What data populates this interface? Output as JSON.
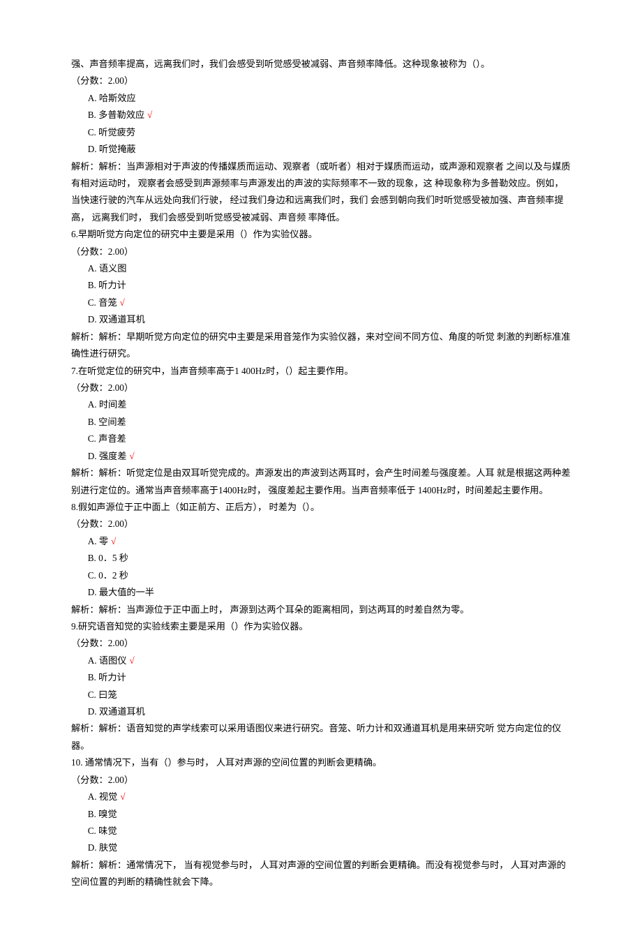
{
  "font": {
    "family": "SimSun",
    "size_pt": 10,
    "line_height": 1.85
  },
  "colors": {
    "text": "#000000",
    "correct_mark": "#ff0000",
    "background": "#ffffff"
  },
  "correct_mark_glyph": "√",
  "continuation_text": "强、声音频率提高，远离我们时，我们会感受到听觉感受被减弱、声音频率降低。这种现象被称为（）。",
  "continuation_score": "（分数：2.00）",
  "continuation_options": [
    {
      "label": "A.  哈斯效应",
      "correct": false
    },
    {
      "label": "B.  多普勒效应",
      "correct": true
    },
    {
      "label": "C.  听觉疲劳",
      "correct": false
    },
    {
      "label": "D.  听觉掩蔽",
      "correct": false
    }
  ],
  "continuation_explain": "解析：解析：当声源相对于声波的传播媒质而运动、观察者（或听者）相对于媒质而运动，或声源和观察者 之间以及与媒质有相对运动时， 观察者会感受到声源频率与声源发出的声波的实际频率不一致的现象，这 种现象称为多普勒效应。例如，当快速行驶的汽车从远处向我们行驶， 经过我们身边和远离我们时，我们 会感到朝向我们时听觉感受被加强、声音频率提高， 远离我们时， 我们会感受到听觉感受被减弱、声音频 率降低。",
  "questions": [
    {
      "num": "6.",
      "stem": "早期听觉方向定位的研究中主要是采用（）作为实验仪器。",
      "score": "（分数：2.00）",
      "options": [
        {
          "label": "A.  语义图",
          "correct": false
        },
        {
          "label": "B.  听力计",
          "correct": false
        },
        {
          "label": "C.  音笼",
          "correct": true
        },
        {
          "label": "D.  双通道耳机",
          "correct": false
        }
      ],
      "explain": "解析：解析：早期听觉方向定位的研究中主要是采用音笼作为实验仪器，来对空间不同方位、角度的听觉 刺激的判断标准准确性进行研究。"
    },
    {
      "num": "7.",
      "stem": "在听觉定位的研究中，当声音频率高于1 400Hz时，（）起主要作用。",
      "score": "（分数：2.00）",
      "options": [
        {
          "label": "A.  时间差",
          "correct": false
        },
        {
          "label": "B.  空间差",
          "correct": false
        },
        {
          "label": "C.  声音差",
          "correct": false
        },
        {
          "label": "D.  强度差",
          "correct": true
        }
      ],
      "explain": "解析：解析：听觉定位是由双耳听觉完成的。声源发出的声波到达两耳时，会产生时间差与强度差。人耳 就是根据这两种差别进行定位的。通常当声音频率高于1400Hz时， 强度差起主要作用。当声音频率低于 1400Hz时，时间差起主要作用。"
    },
    {
      "num": "8.",
      "stem": "假如声源位于正中面上（如正前方、正后方）， 时差为（）。",
      "score": "（分数：2.00）",
      "options": [
        {
          "label": "A.  零",
          "correct": true
        },
        {
          "label": "B.  0．5 秒",
          "correct": false
        },
        {
          "label": "C.  0．2 秒",
          "correct": false
        },
        {
          "label": "D.  最大值的一半",
          "correct": false
        }
      ],
      "explain": "解析：解析：当声源位于正中面上时， 声源到达两个耳朵的距离相同，到达两耳的时差自然为零。"
    },
    {
      "num": "9.",
      "stem": "研究语音知觉的实验线索主要是采用（）作为实验仪器。",
      "score": "（分数：2.00）",
      "options": [
        {
          "label": "A.  语图仪",
          "correct": true
        },
        {
          "label": "B.  听力计",
          "correct": false
        },
        {
          "label": "C.  曰笼",
          "correct": false
        },
        {
          "label": "D.  双通道耳机",
          "correct": false
        }
      ],
      "explain": "解析：解析：语音知觉的声学线索可以采用语图仪来进行研究。音笼、听力计和双通道耳机是用来研究听 觉方向定位的仪器。"
    },
    {
      "num": "10.",
      "stem": " 通常情况下，当有（）参与时， 人耳对声源的空间位置的判断会更精确。",
      "score": "（分数：2.00）",
      "options": [
        {
          "label": "A.  视觉",
          "correct": true
        },
        {
          "label": "B.  嗅觉",
          "correct": false
        },
        {
          "label": "C.  味觉",
          "correct": false
        },
        {
          "label": "D.  肤觉",
          "correct": false
        }
      ],
      "explain": "解析：解析：通常情况下， 当有视觉参与时， 人耳对声源的空间位置的判断会更精确。而没有视觉参与时，  人耳对声源的空间位置的判断的精确性就会下降。"
    }
  ]
}
